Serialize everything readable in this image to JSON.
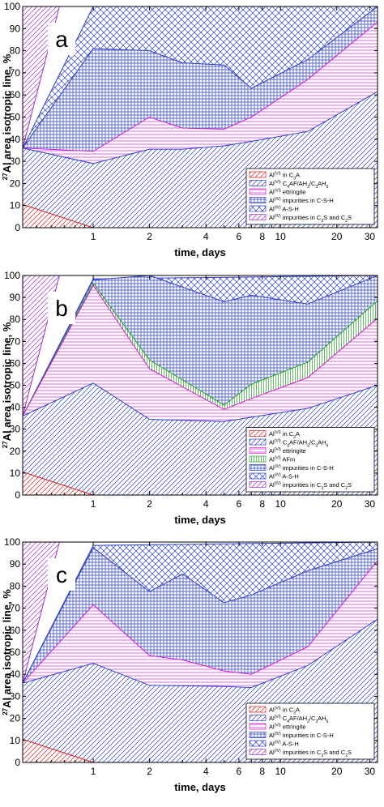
{
  "chart_data": [
    {
      "type": "area",
      "panel_label": "a",
      "xlabel": "time, days",
      "ylabel": "27Al area isotropic line, %",
      "ylabel_parts": {
        "sup": "27",
        "text": "Al area isotropic line, %"
      },
      "x_scale": "log",
      "xlim": [
        0.42,
        33
      ],
      "ylim": [
        0,
        100
      ],
      "x_ticks": [
        1,
        2,
        4,
        6,
        8,
        10,
        20,
        30
      ],
      "y_ticks": [
        0,
        10,
        20,
        30,
        40,
        50,
        60,
        70,
        80,
        90,
        100
      ],
      "legend_position": "bottom-right",
      "series": [
        {
          "key": "c3a",
          "name_parts": [
            [
              "Al",
              ""
            ],
            [
              "(VI)",
              "sup"
            ],
            [
              " in C",
              ""
            ],
            [
              "3",
              "sub"
            ],
            [
              "A",
              ""
            ]
          ],
          "pattern": "diag",
          "color": "#d42020",
          "x": [
            0.42,
            1
          ],
          "y": [
            10.5,
            0
          ]
        },
        {
          "key": "c4af",
          "name_parts": [
            [
              "Al",
              ""
            ],
            [
              "(VI)",
              "sup"
            ],
            [
              " C",
              ""
            ],
            [
              "4",
              "sub"
            ],
            [
              "AF/AH",
              ""
            ],
            [
              "3",
              "sub"
            ],
            [
              "/C",
              ""
            ],
            [
              "3",
              "sub"
            ],
            [
              "AH",
              ""
            ],
            [
              "6",
              "sub"
            ]
          ],
          "pattern": "diag",
          "color": "#2a3fc8",
          "x": [
            0.42,
            1,
            2,
            3,
            5,
            7,
            14,
            33
          ],
          "y": [
            36,
            29,
            35.5,
            35.5,
            37,
            39,
            43.5,
            61.5
          ]
        },
        {
          "key": "ett",
          "name_parts": [
            [
              "Al",
              ""
            ],
            [
              "(VI)",
              "sup"
            ],
            [
              " ettringite",
              ""
            ]
          ],
          "pattern": "horiz",
          "color": "#d020d0",
          "x": [
            0.42,
            1,
            2,
            3,
            5,
            7,
            14,
            33
          ],
          "y": [
            36,
            34.5,
            50,
            45,
            44.5,
            50,
            67,
            93
          ]
        },
        {
          "key": "csh",
          "name_parts": [
            [
              "Al",
              ""
            ],
            [
              "(IV)",
              "sup"
            ],
            [
              " impurities in C-S-H",
              ""
            ]
          ],
          "pattern": "grid",
          "color": "#2a3fc8",
          "x": [
            0.42,
            1,
            2,
            3,
            5,
            7,
            14,
            33
          ],
          "y": [
            36,
            81,
            80,
            74.5,
            73.5,
            63,
            76,
            100
          ]
        },
        {
          "key": "ash",
          "name_parts": [
            [
              "Al",
              ""
            ],
            [
              "(IV)",
              "sup"
            ],
            [
              " A-S-H",
              ""
            ]
          ],
          "pattern": "cross",
          "color": "#2a3fc8",
          "x": [
            0.42,
            1,
            33
          ],
          "y": [
            36,
            100,
            100
          ]
        },
        {
          "key": "c3s",
          "name_parts": [
            [
              "Al",
              ""
            ],
            [
              "(IV)",
              "sup"
            ],
            [
              " impurities in C",
              ""
            ],
            [
              "3",
              "sub"
            ],
            [
              "S and C",
              ""
            ],
            [
              "2",
              "sub"
            ],
            [
              "S",
              ""
            ]
          ],
          "pattern": "diag",
          "color": "#a030c0",
          "x": [
            0.42,
            0.66,
            33
          ],
          "y": [
            36,
            100,
            100
          ]
        }
      ]
    },
    {
      "type": "area",
      "panel_label": "b",
      "xlabel": "time, days",
      "ylabel": "27Al area isotropic line, %",
      "ylabel_parts": {
        "sup": "27",
        "text": "Al area isotropic line, %"
      },
      "x_scale": "log",
      "xlim": [
        0.42,
        33
      ],
      "ylim": [
        0,
        100
      ],
      "x_ticks": [
        1,
        2,
        4,
        6,
        8,
        10,
        20,
        30
      ],
      "y_ticks": [
        0,
        10,
        20,
        30,
        40,
        50,
        60,
        70,
        80,
        90,
        100
      ],
      "legend_position": "bottom-right",
      "series": [
        {
          "key": "c3a",
          "name_parts": [
            [
              "Al",
              ""
            ],
            [
              "(VI)",
              "sup"
            ],
            [
              " in C",
              ""
            ],
            [
              "3",
              "sub"
            ],
            [
              "A",
              ""
            ]
          ],
          "pattern": "diag",
          "color": "#d42020",
          "x": [
            0.42,
            1
          ],
          "y": [
            10.5,
            0
          ]
        },
        {
          "key": "c4af",
          "name_parts": [
            [
              "Al",
              ""
            ],
            [
              "(VI)",
              "sup"
            ],
            [
              " C",
              ""
            ],
            [
              "4",
              "sub"
            ],
            [
              "AF/AH",
              ""
            ],
            [
              "3",
              "sub"
            ],
            [
              "/C",
              ""
            ],
            [
              "3",
              "sub"
            ],
            [
              "AH",
              ""
            ],
            [
              "6",
              "sub"
            ]
          ],
          "pattern": "diag",
          "color": "#2a3fc8",
          "x": [
            0.42,
            1,
            2,
            5,
            14,
            33
          ],
          "y": [
            36,
            51,
            34.5,
            33.5,
            39.5,
            50
          ]
        },
        {
          "key": "ett",
          "name_parts": [
            [
              "Al",
              ""
            ],
            [
              "(VI)",
              "sup"
            ],
            [
              " ettringite",
              ""
            ]
          ],
          "pattern": "horiz",
          "color": "#d020d0",
          "x": [
            0.42,
            1,
            2,
            5,
            7,
            14,
            33
          ],
          "y": [
            36,
            95.5,
            57.5,
            39,
            44,
            53.5,
            80.5
          ]
        },
        {
          "key": "afm",
          "name_parts": [
            [
              "Al",
              ""
            ],
            [
              "(VI)",
              "sup"
            ],
            [
              " AFm",
              ""
            ]
          ],
          "pattern": "vert",
          "color": "#22a022",
          "x": [
            0.42,
            1,
            2,
            5,
            7,
            14,
            33
          ],
          "y": [
            36,
            96.5,
            61.5,
            41,
            50.5,
            60.5,
            88.5
          ]
        },
        {
          "key": "csh",
          "name_parts": [
            [
              "Al",
              ""
            ],
            [
              "(IV)",
              "sup"
            ],
            [
              " impurities in C-S-H",
              ""
            ]
          ],
          "pattern": "grid",
          "color": "#2a3fc8",
          "x": [
            0.42,
            1,
            2,
            5,
            7,
            14,
            33
          ],
          "y": [
            36,
            98,
            100,
            88,
            91,
            87,
            100
          ]
        },
        {
          "key": "ash",
          "name_parts": [
            [
              "Al",
              ""
            ],
            [
              "(IV)",
              "sup"
            ],
            [
              " A-S-H",
              ""
            ]
          ],
          "pattern": "cross",
          "color": "#2a3fc8",
          "x": [
            0.42,
            1,
            33
          ],
          "y": [
            36,
            98.5,
            100
          ]
        },
        {
          "key": "c3s",
          "name_parts": [
            [
              "Al",
              ""
            ],
            [
              "(IV)",
              "sup"
            ],
            [
              " impurities in C",
              ""
            ],
            [
              "3",
              "sub"
            ],
            [
              "S and C",
              ""
            ],
            [
              "2",
              "sub"
            ],
            [
              "S",
              ""
            ]
          ],
          "pattern": "diag",
          "color": "#a030c0",
          "x": [
            0.42,
            0.66,
            33
          ],
          "y": [
            36,
            100,
            100
          ]
        }
      ]
    },
    {
      "type": "area",
      "panel_label": "c",
      "xlabel": "time, days",
      "ylabel": "27Al area isotropic line, %",
      "ylabel_parts": {
        "sup": "27",
        "text": "Al area isotropic line, %"
      },
      "x_scale": "log",
      "xlim": [
        0.42,
        33
      ],
      "ylim": [
        0,
        100
      ],
      "x_ticks": [
        1,
        2,
        4,
        6,
        8,
        10,
        20,
        30
      ],
      "y_ticks": [
        0,
        10,
        20,
        30,
        40,
        50,
        60,
        70,
        80,
        90,
        100
      ],
      "legend_position": "bottom-right",
      "series": [
        {
          "key": "c3a",
          "name_parts": [
            [
              "Al",
              ""
            ],
            [
              "(VI)",
              "sup"
            ],
            [
              " in C",
              ""
            ],
            [
              "3",
              "sub"
            ],
            [
              "A",
              ""
            ]
          ],
          "pattern": "diag",
          "color": "#d42020",
          "x": [
            0.42,
            1
          ],
          "y": [
            10.5,
            0
          ]
        },
        {
          "key": "c4af",
          "name_parts": [
            [
              "Al",
              ""
            ],
            [
              "(VI)",
              "sup"
            ],
            [
              " C",
              ""
            ],
            [
              "4",
              "sub"
            ],
            [
              "AF/AH",
              ""
            ],
            [
              "3",
              "sub"
            ],
            [
              "/C",
              ""
            ],
            [
              "3",
              "sub"
            ],
            [
              "AH",
              ""
            ],
            [
              "6",
              "sub"
            ]
          ],
          "pattern": "diag",
          "color": "#2a3fc8",
          "x": [
            0.42,
            1,
            2,
            5,
            7,
            14,
            33
          ],
          "y": [
            36,
            45,
            35,
            34.5,
            34,
            44,
            65
          ]
        },
        {
          "key": "ett",
          "name_parts": [
            [
              "Al",
              ""
            ],
            [
              "(VI)",
              "sup"
            ],
            [
              " ettringite",
              ""
            ]
          ],
          "pattern": "horiz",
          "color": "#d020d0",
          "x": [
            0.42,
            1,
            2,
            3,
            5,
            7,
            14,
            33
          ],
          "y": [
            36,
            71.5,
            48.5,
            46.5,
            41.5,
            40,
            52.5,
            91.5
          ]
        },
        {
          "key": "csh",
          "name_parts": [
            [
              "Al",
              ""
            ],
            [
              "(IV)",
              "sup"
            ],
            [
              " impurities in C-S-H",
              ""
            ]
          ],
          "pattern": "grid",
          "color": "#2a3fc8",
          "x": [
            0.42,
            1,
            2,
            3,
            5,
            7,
            14,
            33
          ],
          "y": [
            36,
            97.5,
            77.5,
            85.5,
            72.5,
            76,
            87,
            97
          ]
        },
        {
          "key": "ash",
          "name_parts": [
            [
              "Al",
              ""
            ],
            [
              "(IV)",
              "sup"
            ],
            [
              " A-S-H",
              ""
            ]
          ],
          "pattern": "cross",
          "color": "#2a3fc8",
          "x": [
            0.42,
            1,
            33
          ],
          "y": [
            36,
            98.5,
            100
          ]
        },
        {
          "key": "c3s",
          "name_parts": [
            [
              "Al",
              ""
            ],
            [
              "(IV)",
              "sup"
            ],
            [
              " impurities in C",
              ""
            ],
            [
              "3",
              "sub"
            ],
            [
              "S and C",
              ""
            ],
            [
              "2",
              "sub"
            ],
            [
              "S",
              ""
            ]
          ],
          "pattern": "diag",
          "color": "#a030c0",
          "x": [
            0.42,
            0.66,
            33
          ],
          "y": [
            36,
            100,
            100
          ]
        }
      ]
    }
  ]
}
